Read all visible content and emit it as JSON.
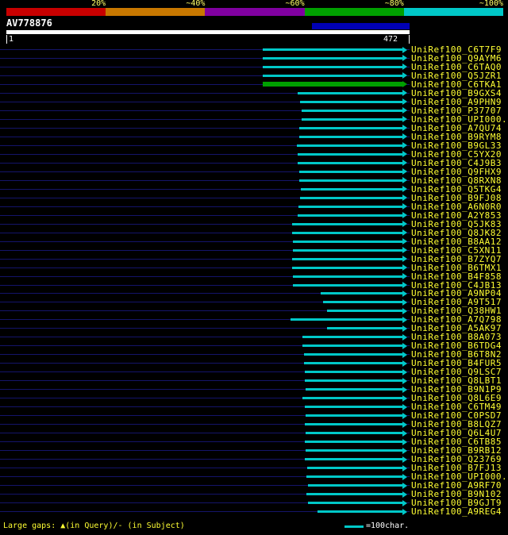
{
  "query": {
    "name": "AV778876",
    "start_label": "1",
    "end_label": "472",
    "length": 472,
    "highlight": {
      "qstart": 361,
      "qend": 472,
      "color": "#0000b4"
    }
  },
  "scale": {
    "labels": [
      "20%",
      "~40%",
      "~60%",
      "~80%",
      "~100%"
    ],
    "colors": [
      "#c80000",
      "#c87800",
      "#8000a0",
      "#00a000",
      "#00c8c8"
    ]
  },
  "colors": {
    "background": "#000000",
    "query_bar": "#ffffff",
    "row_guide": "#14146a",
    "label_text": "#ffff33",
    "scale_label_text": "#ffff66",
    "ruler_text": "#ffffff",
    "legend_line": "#00c8c8",
    "identity": {
      "~100%": "#00c8c8",
      "~80%": "#00a000"
    }
  },
  "footer": {
    "gaps_note": "Large gaps: ▲(in Query)/- (in Subject)",
    "legend_text": "=100char."
  },
  "chart_data": {
    "type": "bar",
    "orientation": "horizontal",
    "title": "AV778876",
    "xlabel": "query position (residues)",
    "xlim": [
      1,
      472
    ],
    "legend_note": "=100char.",
    "rows": [
      {
        "label": "UniRef100_C6T7F9",
        "qstart": 303,
        "qend": 472,
        "identity": "~100%"
      },
      {
        "label": "UniRef100_Q9AYM6",
        "qstart": 303,
        "qend": 472,
        "identity": "~100%"
      },
      {
        "label": "UniRef100_C6TAQ0",
        "qstart": 303,
        "qend": 472,
        "identity": "~100%"
      },
      {
        "label": "UniRef100_Q5JZR1",
        "qstart": 303,
        "qend": 472,
        "identity": "~100%"
      },
      {
        "label": "UniRef100_C6TKA1",
        "qstart": 303,
        "qend": 472,
        "identity": "~80%"
      },
      {
        "label": "UniRef100_B9GXS4",
        "qstart": 344,
        "qend": 472,
        "identity": "~100%"
      },
      {
        "label": "UniRef100_A9PHN9",
        "qstart": 347,
        "qend": 472,
        "identity": "~100%"
      },
      {
        "label": "UniRef100_P37707",
        "qstart": 349,
        "qend": 472,
        "identity": "~100%"
      },
      {
        "label": "UniRef100_UPI000...",
        "qstart": 349,
        "qend": 472,
        "identity": "~100%"
      },
      {
        "label": "UniRef100_A7QU74",
        "qstart": 346,
        "qend": 472,
        "identity": "~100%"
      },
      {
        "label": "UniRef100_B9RYM8",
        "qstart": 346,
        "qend": 472,
        "identity": "~100%"
      },
      {
        "label": "UniRef100_B9GL33",
        "qstart": 343,
        "qend": 472,
        "identity": "~100%"
      },
      {
        "label": "UniRef100_C5YX20",
        "qstart": 344,
        "qend": 472,
        "identity": "~100%"
      },
      {
        "label": "UniRef100_C4J9B3",
        "qstart": 344,
        "qend": 472,
        "identity": "~100%"
      },
      {
        "label": "UniRef100_Q9FHX9",
        "qstart": 346,
        "qend": 472,
        "identity": "~100%"
      },
      {
        "label": "UniRef100_Q8RXN8",
        "qstart": 346,
        "qend": 472,
        "identity": "~100%"
      },
      {
        "label": "UniRef100_Q5TKG4",
        "qstart": 348,
        "qend": 472,
        "identity": "~100%"
      },
      {
        "label": "UniRef100_B9FJ08",
        "qstart": 347,
        "qend": 472,
        "identity": "~100%"
      },
      {
        "label": "UniRef100_A6N0R0",
        "qstart": 345,
        "qend": 472,
        "identity": "~100%"
      },
      {
        "label": "UniRef100_A2Y853",
        "qstart": 344,
        "qend": 472,
        "identity": "~100%"
      },
      {
        "label": "UniRef100_Q5JK83",
        "qstart": 337,
        "qend": 472,
        "identity": "~100%"
      },
      {
        "label": "UniRef100_Q8JK82",
        "qstart": 337,
        "qend": 472,
        "identity": "~100%"
      },
      {
        "label": "UniRef100_B8AA12",
        "qstart": 338,
        "qend": 472,
        "identity": "~100%"
      },
      {
        "label": "UniRef100_C5XN11",
        "qstart": 338,
        "qend": 472,
        "identity": "~100%"
      },
      {
        "label": "UniRef100_B7ZYQ7",
        "qstart": 337,
        "qend": 472,
        "identity": "~100%"
      },
      {
        "label": "UniRef100_B6TMX1",
        "qstart": 337,
        "qend": 472,
        "identity": "~100%"
      },
      {
        "label": "UniRef100_B4F858",
        "qstart": 338,
        "qend": 472,
        "identity": "~100%"
      },
      {
        "label": "UniRef100_C4JB13",
        "qstart": 338,
        "qend": 472,
        "identity": "~100%"
      },
      {
        "label": "UniRef100_A9NP04",
        "qstart": 371,
        "qend": 472,
        "identity": "~100%"
      },
      {
        "label": "UniRef100_A9T517",
        "qstart": 374,
        "qend": 472,
        "identity": "~100%"
      },
      {
        "label": "UniRef100_Q38HW1",
        "qstart": 379,
        "qend": 472,
        "identity": "~100%"
      },
      {
        "label": "UniRef100_A7Q798",
        "qstart": 336,
        "qend": 472,
        "identity": "~100%"
      },
      {
        "label": "UniRef100_A5AK97",
        "qstart": 379,
        "qend": 472,
        "identity": "~100%"
      },
      {
        "label": "UniRef100_B8A073",
        "qstart": 350,
        "qend": 472,
        "identity": "~100%"
      },
      {
        "label": "UniRef100_B6TDG4",
        "qstart": 350,
        "qend": 472,
        "identity": "~100%"
      },
      {
        "label": "UniRef100_B6T8N2",
        "qstart": 351,
        "qend": 472,
        "identity": "~100%"
      },
      {
        "label": "UniRef100_B4FUR5",
        "qstart": 351,
        "qend": 472,
        "identity": "~100%"
      },
      {
        "label": "UniRef100_Q9LSC7",
        "qstart": 352,
        "qend": 472,
        "identity": "~100%"
      },
      {
        "label": "UniRef100_Q8LBT1",
        "qstart": 352,
        "qend": 472,
        "identity": "~100%"
      },
      {
        "label": "UniRef100_B9N1P9",
        "qstart": 353,
        "qend": 472,
        "identity": "~100%"
      },
      {
        "label": "UniRef100_Q8L6E9",
        "qstart": 350,
        "qend": 472,
        "identity": "~100%"
      },
      {
        "label": "UniRef100_C6TM49",
        "qstart": 352,
        "qend": 472,
        "identity": "~100%"
      },
      {
        "label": "UniRef100_C0PSD7",
        "qstart": 353,
        "qend": 472,
        "identity": "~100%"
      },
      {
        "label": "UniRef100_B8LQZ7",
        "qstart": 352,
        "qend": 472,
        "identity": "~100%"
      },
      {
        "label": "UniRef100_Q6L4U7",
        "qstart": 353,
        "qend": 472,
        "identity": "~100%"
      },
      {
        "label": "UniRef100_C6TB85",
        "qstart": 352,
        "qend": 472,
        "identity": "~100%"
      },
      {
        "label": "UniRef100_B9RB12",
        "qstart": 353,
        "qend": 472,
        "identity": "~100%"
      },
      {
        "label": "UniRef100_Q23769",
        "qstart": 352,
        "qend": 472,
        "identity": "~100%"
      },
      {
        "label": "UniRef100_B7FJ13",
        "qstart": 355,
        "qend": 472,
        "identity": "~100%"
      },
      {
        "label": "UniRef100_UPI000...",
        "qstart": 354,
        "qend": 472,
        "identity": "~100%"
      },
      {
        "label": "UniRef100_A9RF70",
        "qstart": 356,
        "qend": 472,
        "identity": "~100%"
      },
      {
        "label": "UniRef100_B9N102",
        "qstart": 354,
        "qend": 472,
        "identity": "~100%"
      },
      {
        "label": "UniRef100_B9GJT9",
        "qstart": 356,
        "qend": 472,
        "identity": "~100%"
      },
      {
        "label": "UniRef100_A9REG4",
        "qstart": 367,
        "qend": 472,
        "identity": "~100%"
      }
    ]
  }
}
